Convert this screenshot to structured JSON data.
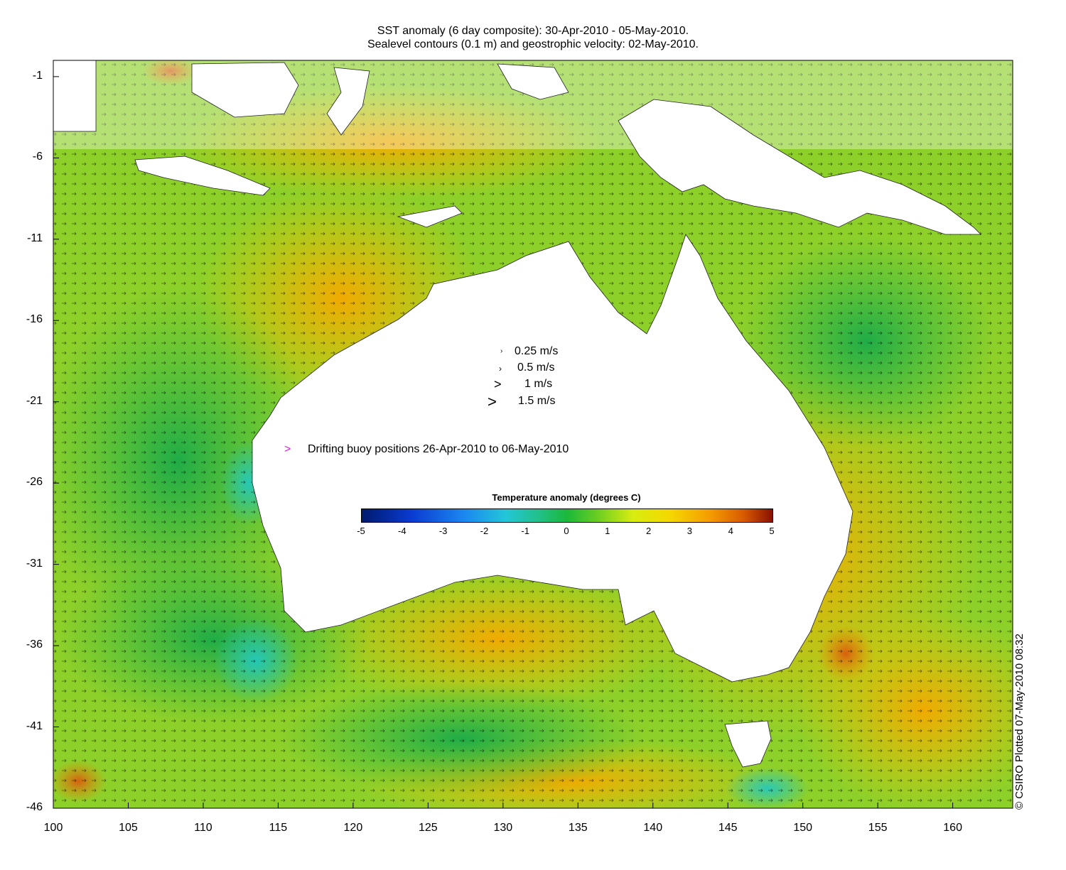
{
  "title": {
    "line1": "SST anomaly (6 day composite): 30-Apr-2010 - 05-May-2010.",
    "line2": "Sealevel contours (0.1 m) and geostrophic velocity: 02-May-2010."
  },
  "axes": {
    "x_ticks": [
      "100",
      "105",
      "110",
      "115",
      "120",
      "125",
      "130",
      "135",
      "140",
      "145",
      "150",
      "155",
      "160"
    ],
    "y_ticks": [
      "-1",
      "-6",
      "-11",
      "-16",
      "-21",
      "-26",
      "-31",
      "-36",
      "-41",
      "-46"
    ],
    "x_range": [
      100,
      164
    ],
    "y_range": [
      -46,
      0
    ]
  },
  "velocity_legend": [
    {
      "label": "0.25 m/s",
      "speed": 0.25
    },
    {
      "label": "0.5 m/s",
      "speed": 0.5
    },
    {
      "label": "1 m/s",
      "speed": 1
    },
    {
      "label": "1.5 m/s",
      "speed": 1.5
    }
  ],
  "buoy_legend": {
    "symbol": ">",
    "label": "Drifting buoy positions 26-Apr-2010 to 06-May-2010",
    "color": "#e020e0"
  },
  "colorbar": {
    "title": "Temperature anomaly (degrees C)",
    "ticks": [
      "-5",
      "-4",
      "-3",
      "-2",
      "-1",
      "0",
      "1",
      "2",
      "3",
      "4",
      "5"
    ],
    "range": [
      -5,
      5
    ]
  },
  "credit": "© CSIRO Plotted 07-May-2010 08:32",
  "colors": {
    "land": "#ffffff",
    "ocean_base": "#86cf2a",
    "warm": "#f5b800",
    "cool": "#1fa84a",
    "cold": "#22c6c0"
  }
}
